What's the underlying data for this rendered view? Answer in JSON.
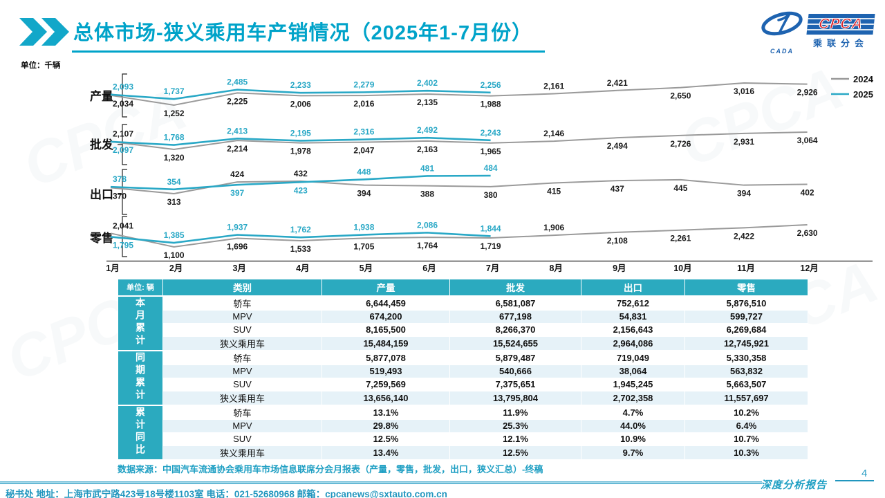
{
  "colors": {
    "accent_cyan": "#00a3c9",
    "table_header_teal": "#2baabf",
    "row_alt_blue": "#e6f2f8",
    "line_2024": "#9a9a9a",
    "line_2025": "#29a8c6",
    "logo_blue": "#1e63b0",
    "logo_red": "#d8232a"
  },
  "header": {
    "title": "总体市场-狭义乘用车产销情况（2025年1-7月份）",
    "logo": {
      "cpca": "CPCA",
      "cada": "CADA",
      "cn_name": "乘联分会"
    }
  },
  "chart_area": {
    "unit_label": "单位：千辆",
    "x_labels": [
      "1月",
      "2月",
      "3月",
      "4月",
      "5月",
      "6月",
      "7月",
      "8月",
      "9月",
      "10月",
      "11月",
      "12月"
    ],
    "legend": [
      {
        "label": "2024",
        "color": "#9a9a9a"
      },
      {
        "label": "2025",
        "color": "#29a8c6"
      }
    ]
  },
  "chart_data": [
    {
      "type": "line",
      "title": "产量",
      "unit": "千辆",
      "categories": [
        "1月",
        "2月",
        "3月",
        "4月",
        "5月",
        "6月",
        "7月",
        "8月",
        "9月",
        "10月",
        "11月",
        "12月"
      ],
      "series": [
        {
          "name": "2024",
          "values": [
            2034,
            1252,
            2225,
            2006,
            2016,
            2135,
            1988,
            2161,
            2421,
            2650,
            3016,
            2926
          ]
        },
        {
          "name": "2025",
          "values": [
            2093,
            1737,
            2485,
            2233,
            2279,
            2402,
            2256
          ]
        }
      ]
    },
    {
      "type": "line",
      "title": "批发",
      "unit": "千辆",
      "categories": [
        "1月",
        "2月",
        "3月",
        "4月",
        "5月",
        "6月",
        "7月",
        "8月",
        "9月",
        "10月",
        "11月",
        "12月"
      ],
      "series": [
        {
          "name": "2024",
          "values": [
            2107,
            1320,
            2214,
            1978,
            2047,
            2163,
            1965,
            2146,
            2494,
            2726,
            2931,
            3064
          ]
        },
        {
          "name": "2025",
          "values": [
            2097,
            1768,
            2413,
            2195,
            2316,
            2492,
            2243
          ]
        }
      ]
    },
    {
      "type": "line",
      "title": "出口",
      "unit": "千辆",
      "categories": [
        "1月",
        "2月",
        "3月",
        "4月",
        "5月",
        "6月",
        "7月",
        "8月",
        "9月",
        "10月",
        "11月",
        "12月"
      ],
      "series": [
        {
          "name": "2024",
          "values": [
            370,
            313,
            424,
            432,
            394,
            388,
            380,
            415,
            437,
            445,
            394,
            402
          ]
        },
        {
          "name": "2025",
          "values": [
            378,
            354,
            397,
            423,
            448,
            481,
            484
          ]
        }
      ]
    },
    {
      "type": "line",
      "title": "零售",
      "unit": "千辆",
      "categories": [
        "1月",
        "2月",
        "3月",
        "4月",
        "5月",
        "6月",
        "7月",
        "8月",
        "9月",
        "10月",
        "11月",
        "12月"
      ],
      "series": [
        {
          "name": "2024",
          "values": [
            2041,
            1100,
            1696,
            1533,
            1705,
            1764,
            1719,
            1906,
            2108,
            2261,
            2422,
            2630
          ]
        },
        {
          "name": "2025",
          "values": [
            1795,
            1385,
            1937,
            1762,
            1938,
            2086,
            1844
          ]
        }
      ]
    }
  ],
  "table": {
    "unit_label": "单位: 辆",
    "columns": [
      "类别",
      "产量",
      "批发",
      "出口",
      "零售"
    ],
    "groups": [
      {
        "label": "本月累计",
        "rows": [
          [
            "轿车",
            "6,644,459",
            "6,581,087",
            "752,612",
            "5,876,510"
          ],
          [
            "MPV",
            "674,200",
            "677,198",
            "54,831",
            "599,727"
          ],
          [
            "SUV",
            "8,165,500",
            "8,266,370",
            "2,156,643",
            "6,269,684"
          ],
          [
            "狭义乘用车",
            "15,484,159",
            "15,524,655",
            "2,964,086",
            "12,745,921"
          ]
        ]
      },
      {
        "label": "同期累计",
        "rows": [
          [
            "轿车",
            "5,877,078",
            "5,879,487",
            "719,049",
            "5,330,358"
          ],
          [
            "MPV",
            "519,493",
            "540,666",
            "38,064",
            "563,832"
          ],
          [
            "SUV",
            "7,259,569",
            "7,375,651",
            "1,945,245",
            "5,663,507"
          ],
          [
            "狭义乘用车",
            "13,656,140",
            "13,795,804",
            "2,702,358",
            "11,557,697"
          ]
        ]
      },
      {
        "label": "累计同比",
        "rows": [
          [
            "轿车",
            "13.1%",
            "11.9%",
            "4.7%",
            "10.2%"
          ],
          [
            "MPV",
            "29.8%",
            "25.3%",
            "44.0%",
            "6.4%"
          ],
          [
            "SUV",
            "12.5%",
            "12.1%",
            "10.9%",
            "10.7%"
          ],
          [
            "狭义乘用车",
            "13.4%",
            "12.5%",
            "9.7%",
            "10.3%"
          ]
        ]
      }
    ]
  },
  "source_note": "数据来源：中国汽车流通协会乘用车市场信息联席分会月报表（产量，零售，批发，出口，狭义汇总）-终稿",
  "footer": {
    "contact": "秘书处  地址：上海市武宁路423号18号楼1103室 电话：021-52680968  邮箱：cpcanews@sxtauto.com.cn",
    "report_label": "深度分析报告",
    "page_number": "4"
  },
  "watermark": "CPCA"
}
